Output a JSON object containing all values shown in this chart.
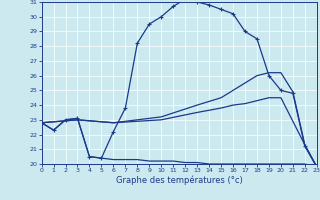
{
  "xlabel": "Graphe des températures (°c)",
  "xlim": [
    0,
    23
  ],
  "ylim": [
    20,
    31
  ],
  "yticks": [
    20,
    21,
    22,
    23,
    24,
    25,
    26,
    27,
    28,
    29,
    30,
    31
  ],
  "xticks": [
    0,
    1,
    2,
    3,
    4,
    5,
    6,
    7,
    8,
    9,
    10,
    11,
    12,
    13,
    14,
    15,
    16,
    17,
    18,
    19,
    20,
    21,
    22,
    23
  ],
  "bg_color": "#cce9f0",
  "line_color": "#1a3a8a",
  "line1_x": [
    0,
    1,
    2,
    3,
    4,
    5,
    6,
    7,
    8,
    9,
    10,
    11,
    12,
    13,
    14,
    15,
    16,
    17,
    18,
    19,
    20,
    21,
    22,
    23
  ],
  "line1_y": [
    22.8,
    22.3,
    23.0,
    23.1,
    20.5,
    20.4,
    22.2,
    23.8,
    28.2,
    29.5,
    30.0,
    30.7,
    31.2,
    31.0,
    30.8,
    30.5,
    30.2,
    29.0,
    28.5,
    26.0,
    25.0,
    24.8,
    21.2,
    19.8
  ],
  "line2_x": [
    0,
    3,
    6,
    10,
    13,
    15,
    16,
    17,
    18,
    19,
    20,
    21,
    22,
    23
  ],
  "line2_y": [
    22.8,
    23.0,
    22.8,
    23.2,
    24.0,
    24.5,
    25.0,
    25.5,
    26.0,
    26.2,
    26.2,
    24.9,
    21.3,
    19.8
  ],
  "line3_x": [
    0,
    3,
    6,
    10,
    13,
    15,
    16,
    17,
    18,
    19,
    20,
    22,
    23
  ],
  "line3_y": [
    22.8,
    23.0,
    22.8,
    23.0,
    23.5,
    23.8,
    24.0,
    24.1,
    24.3,
    24.5,
    24.5,
    21.3,
    19.8
  ],
  "line4_x": [
    0,
    1,
    2,
    3,
    4,
    5,
    6,
    7,
    8,
    9,
    10,
    11,
    12,
    13,
    14,
    15,
    16,
    17,
    18,
    19,
    20,
    21,
    22,
    23
  ],
  "line4_y": [
    22.8,
    22.3,
    23.0,
    23.1,
    20.5,
    20.4,
    20.3,
    20.3,
    20.3,
    20.2,
    20.2,
    20.2,
    20.1,
    20.1,
    20.0,
    20.0,
    20.0,
    20.0,
    20.0,
    20.0,
    20.0,
    20.0,
    20.0,
    19.8
  ]
}
